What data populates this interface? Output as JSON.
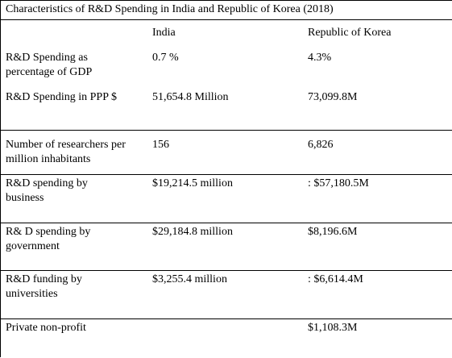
{
  "title": "Characteristics of R&D Spending in India and Republic of Korea (2018)",
  "columns": [
    "India",
    "Republic of Korea"
  ],
  "rows": [
    {
      "label": "R&D Spending as\npercentage of GDP",
      "india": "0.7 %",
      "korea": "4.3%"
    },
    {
      "label": "R&D Spending in PPP $",
      "india": "51,654.8 Million",
      "korea": "73,099.8M"
    },
    {
      "label": "Number of researchers per\nmillion inhabitants",
      "india": "156",
      "korea": "6,826"
    },
    {
      "label": "R&D spending by\nbusiness",
      "india": "$19,214.5 million",
      "korea": ": $57,180.5M"
    },
    {
      "label": "R& D spending by\ngovernment",
      "india": "$29,184.8 million",
      "korea": "$8,196.6M"
    },
    {
      "label": "R&D funding by\nuniversities",
      "india": "$3,255.4 million",
      "korea": ": $6,614.4M"
    },
    {
      "label": "Private non-profit",
      "india": "",
      "korea": "$1,108.3M"
    }
  ]
}
